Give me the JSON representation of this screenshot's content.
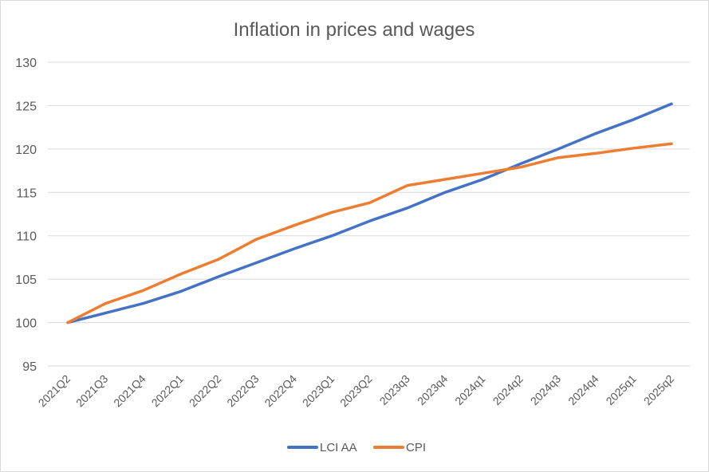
{
  "chart_data": {
    "type": "line",
    "title": "Inflation in prices and wages",
    "xlabel": "",
    "ylabel": "",
    "ylim": [
      95,
      130
    ],
    "yticks": [
      95,
      100,
      105,
      110,
      115,
      120,
      125,
      130
    ],
    "grid": true,
    "legend_position": "bottom",
    "categories": [
      "2021Q2",
      "2021Q3",
      "2021Q4",
      "2022Q1",
      "2022Q2",
      "2022Q3",
      "2022Q4",
      "2023Q1",
      "2023Q2",
      "2023q3",
      "2023q4",
      "2024q1",
      "2024q2",
      "2024q3",
      "2024q4",
      "2025q1",
      "2025q2"
    ],
    "series": [
      {
        "name": "LCI AA",
        "color": "#4472c4",
        "values": [
          100.0,
          101.1,
          102.2,
          103.6,
          105.3,
          106.9,
          108.5,
          110.0,
          111.7,
          113.2,
          115.0,
          116.5,
          118.3,
          120.0,
          121.8,
          123.4,
          125.2
        ]
      },
      {
        "name": "CPI",
        "color": "#ed7d31",
        "values": [
          100.0,
          102.2,
          103.7,
          105.6,
          107.3,
          109.6,
          111.2,
          112.7,
          113.8,
          115.8,
          116.5,
          117.2,
          117.9,
          119.0,
          119.5,
          120.1,
          120.6
        ]
      }
    ]
  }
}
